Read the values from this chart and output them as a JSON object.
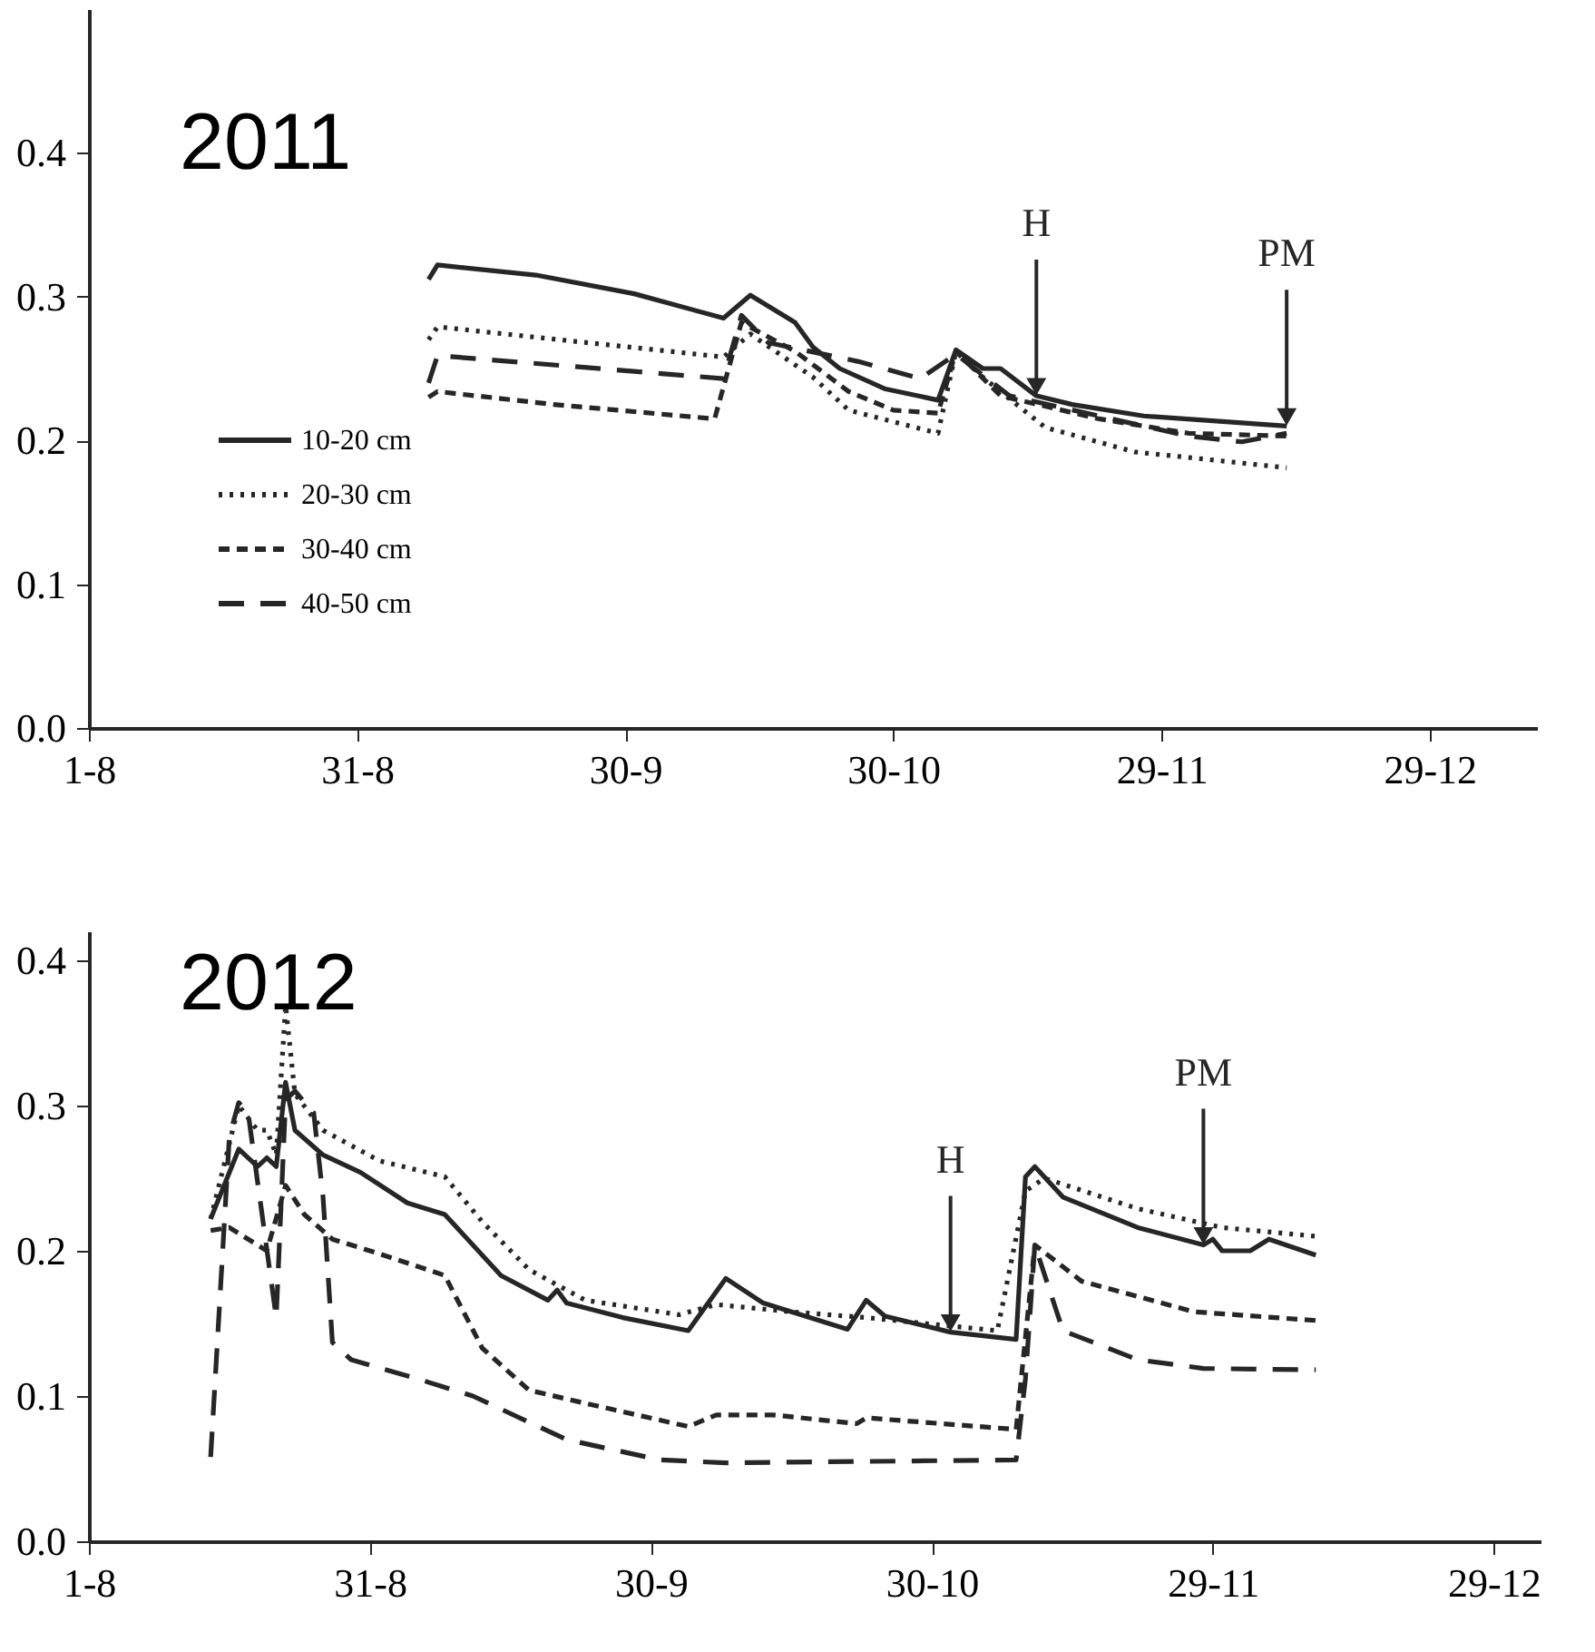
{
  "chart_data": [
    {
      "type": "line",
      "title": "2011",
      "xlim": [
        "2011-08-01",
        "2012-01-10"
      ],
      "ylim": [
        0,
        0.5
      ],
      "xticks": [
        {
          "value": "2011-08-01",
          "label": "1-8"
        },
        {
          "value": "2011-08-31",
          "label": "31-8"
        },
        {
          "value": "2011-09-30",
          "label": "30-9"
        },
        {
          "value": "2011-10-30",
          "label": "30-10"
        },
        {
          "value": "2011-11-29",
          "label": "29-11"
        },
        {
          "value": "2011-12-29",
          "label": "29-12"
        }
      ],
      "yticks": [
        {
          "value": 0,
          "label": "0.0"
        },
        {
          "value": 0.1,
          "label": "0.1"
        },
        {
          "value": 0.2,
          "label": "0.2"
        },
        {
          "value": 0.3,
          "label": "0.3"
        },
        {
          "value": 0.4,
          "label": "0.4"
        }
      ],
      "grid": false,
      "legend": "bottom left",
      "series": [
        {
          "name": "10-20 cm",
          "color": "#262626",
          "line_style": "solid",
          "x": [
            "2011-09-08",
            "2011-09-09",
            "2011-09-20",
            "2011-10-01",
            "2011-10-11",
            "2011-10-14",
            "2011-10-19",
            "2011-10-21",
            "2011-10-24",
            "2011-10-29",
            "2011-11-04",
            "2011-11-06",
            "2011-11-09",
            "2011-11-11",
            "2011-11-15",
            "2011-11-19",
            "2011-11-27",
            "2011-12-13"
          ],
          "values": [
            0.312,
            0.322,
            0.315,
            0.302,
            0.285,
            0.301,
            0.282,
            0.265,
            0.25,
            0.236,
            0.228,
            0.263,
            0.25,
            0.25,
            0.231,
            0.225,
            0.217,
            0.21
          ]
        },
        {
          "name": "20-30 cm",
          "color": "#262626",
          "line_style": "dotted",
          "x": [
            "2011-09-08",
            "2011-09-09",
            "2011-10-11",
            "2011-10-14",
            "2011-10-21",
            "2011-10-25",
            "2011-11-04",
            "2011-11-06",
            "2011-11-09",
            "2011-11-16",
            "2011-11-26",
            "2011-12-13"
          ],
          "values": [
            0.27,
            0.279,
            0.258,
            0.274,
            0.244,
            0.221,
            0.205,
            0.262,
            0.244,
            0.209,
            0.192,
            0.181
          ]
        },
        {
          "name": "30-40 cm",
          "color": "#262626",
          "line_style": "dashed",
          "x": [
            "2011-09-08",
            "2011-09-09",
            "2011-09-22",
            "2011-10-10",
            "2011-10-13",
            "2011-10-19",
            "2011-10-25",
            "2011-10-30",
            "2011-11-04",
            "2011-11-06",
            "2011-11-11",
            "2011-11-22",
            "2011-12-02",
            "2011-12-13"
          ],
          "values": [
            0.23,
            0.234,
            0.225,
            0.215,
            0.282,
            0.262,
            0.234,
            0.221,
            0.219,
            0.262,
            0.231,
            0.215,
            0.205,
            0.203
          ]
        },
        {
          "name": "40-50 cm",
          "color": "#262626",
          "line_style": "longdash",
          "x": [
            "2011-09-08",
            "2011-09-09",
            "2011-10-11",
            "2011-10-13",
            "2011-10-16",
            "2011-10-26",
            "2011-11-02",
            "2011-11-06",
            "2011-11-12",
            "2011-12-02",
            "2011-12-08",
            "2011-12-13"
          ],
          "values": [
            0.24,
            0.259,
            0.243,
            0.287,
            0.268,
            0.255,
            0.243,
            0.26,
            0.231,
            0.203,
            0.199,
            0.205
          ]
        }
      ],
      "annotations": [
        {
          "text": "H",
          "x": "2011-11-15",
          "y": 0.231
        },
        {
          "text": "PM",
          "x": "2011-12-13",
          "y": 0.21
        }
      ]
    },
    {
      "type": "line",
      "title": "2012",
      "xlim": [
        "2012-08-01",
        "2013-01-03"
      ],
      "ylim": [
        0,
        0.42
      ],
      "xticks": [
        {
          "value": "2012-08-01",
          "label": "1-8"
        },
        {
          "value": "2012-08-31",
          "label": "31-8"
        },
        {
          "value": "2012-09-30",
          "label": "30-9"
        },
        {
          "value": "2012-10-30",
          "label": "30-10"
        },
        {
          "value": "2012-11-29",
          "label": "29-11"
        },
        {
          "value": "2012-12-29",
          "label": "29-12"
        }
      ],
      "yticks": [
        {
          "value": 0,
          "label": "0.0"
        },
        {
          "value": 0.1,
          "label": "0.1"
        },
        {
          "value": 0.2,
          "label": "0.2"
        },
        {
          "value": 0.3,
          "label": "0.3"
        },
        {
          "value": 0.4,
          "label": "0.4"
        }
      ],
      "grid": false,
      "series": [
        {
          "color": "#262626",
          "line_style": "solid",
          "x": [
            "2012-08-14",
            "2012-08-17",
            "2012-08-19",
            "2012-08-20",
            "2012-08-21",
            "2012-08-22",
            "2012-08-23",
            "2012-08-26",
            "2012-08-30",
            "2012-09-04",
            "2012-09-08",
            "2012-09-14",
            "2012-09-19",
            "2012-09-20",
            "2012-09-21",
            "2012-09-27",
            "2012-10-04",
            "2012-10-08",
            "2012-10-12",
            "2012-10-21",
            "2012-10-23",
            "2012-10-25",
            "2012-11-01",
            "2012-11-08",
            "2012-11-09",
            "2012-11-10",
            "2012-11-13",
            "2012-11-21",
            "2012-11-28",
            "2012-11-29",
            "2012-11-30",
            "2012-12-03",
            "2012-12-05",
            "2012-12-10"
          ],
          "values": [
            0.222,
            0.27,
            0.258,
            0.264,
            0.258,
            0.316,
            0.283,
            0.266,
            0.254,
            0.233,
            0.225,
            0.183,
            0.166,
            0.173,
            0.164,
            0.154,
            0.145,
            0.181,
            0.164,
            0.146,
            0.166,
            0.155,
            0.144,
            0.139,
            0.251,
            0.258,
            0.237,
            0.216,
            0.204,
            0.208,
            0.2,
            0.2,
            0.208,
            0.197
          ]
        },
        {
          "color": "#262626",
          "line_style": "dotted",
          "x": [
            "2012-08-14",
            "2012-08-17",
            "2012-08-19",
            "2012-08-20",
            "2012-08-21",
            "2012-08-22",
            "2012-08-23",
            "2012-08-26",
            "2012-09-01",
            "2012-09-08",
            "2012-09-12",
            "2012-09-17",
            "2012-09-23",
            "2012-10-03",
            "2012-10-07",
            "2012-10-15",
            "2012-10-23",
            "2012-11-06",
            "2012-11-09",
            "2012-11-11",
            "2012-11-21",
            "2012-11-30",
            "2012-12-10"
          ],
          "values": [
            0.222,
            0.3,
            0.283,
            0.283,
            0.266,
            0.369,
            0.308,
            0.283,
            0.262,
            0.251,
            0.22,
            0.187,
            0.166,
            0.156,
            0.163,
            0.158,
            0.154,
            0.145,
            0.241,
            0.25,
            0.229,
            0.216,
            0.21
          ]
        },
        {
          "color": "#262626",
          "line_style": "dashed",
          "x": [
            "2012-08-14",
            "2012-08-16",
            "2012-08-19",
            "2012-08-20",
            "2012-08-22",
            "2012-08-24",
            "2012-08-27",
            "2012-09-01",
            "2012-09-08",
            "2012-09-12",
            "2012-09-17",
            "2012-09-23",
            "2012-10-04",
            "2012-10-07",
            "2012-10-13",
            "2012-10-22",
            "2012-10-23",
            "2012-11-08",
            "2012-11-10",
            "2012-11-15",
            "2012-11-27",
            "2012-12-10"
          ],
          "values": [
            0.214,
            0.216,
            0.204,
            0.2,
            0.245,
            0.225,
            0.208,
            0.198,
            0.183,
            0.133,
            0.104,
            0.095,
            0.079,
            0.087,
            0.087,
            0.081,
            0.085,
            0.077,
            0.204,
            0.179,
            0.158,
            0.152
          ]
        },
        {
          "color": "#262626",
          "line_style": "longdash",
          "x": [
            "2012-08-14",
            "2012-08-16",
            "2012-08-17",
            "2012-08-18",
            "2012-08-21",
            "2012-08-22",
            "2012-08-23",
            "2012-08-25",
            "2012-08-26",
            "2012-08-27",
            "2012-08-29",
            "2012-09-05",
            "2012-09-11",
            "2012-09-21",
            "2012-10-01",
            "2012-10-08",
            "2012-11-08",
            "2012-11-09",
            "2012-11-10",
            "2012-11-13",
            "2012-11-21",
            "2012-11-28",
            "2012-12-10"
          ],
          "values": [
            0.058,
            0.279,
            0.302,
            0.295,
            0.154,
            0.304,
            0.31,
            0.295,
            0.237,
            0.137,
            0.125,
            0.112,
            0.1,
            0.07,
            0.056,
            0.054,
            0.056,
            0.112,
            0.204,
            0.145,
            0.125,
            0.119,
            0.118
          ]
        }
      ],
      "annotations": [
        {
          "text": "H",
          "x": "2012-11-01",
          "y": 0.144
        },
        {
          "text": "PM",
          "x": "2012-11-28",
          "y": 0.204
        }
      ]
    }
  ]
}
